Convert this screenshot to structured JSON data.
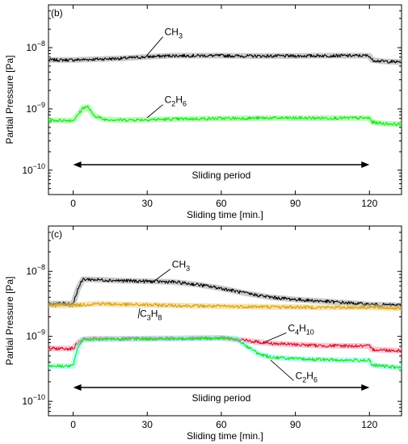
{
  "chart_data": [
    {
      "type": "line",
      "panel_label": "(b)",
      "xlabel": "Sliding time [min.]",
      "ylabel": "Partial Pressure [Pa]",
      "xlim": [
        -10,
        133
      ],
      "ylim": [
        4e-11,
        5e-08
      ],
      "yscale": "log",
      "xticks": [
        {
          "value": 0,
          "label": "0"
        },
        {
          "value": 30,
          "label": "30"
        },
        {
          "value": 60,
          "label": "60"
        },
        {
          "value": 90,
          "label": "90"
        },
        {
          "value": 120,
          "label": "120"
        }
      ],
      "yticks": [
        {
          "value": 1e-08,
          "base": "10",
          "exp": "−8"
        },
        {
          "value": 1e-09,
          "base": "10",
          "exp": "−9"
        },
        {
          "value": 1e-10,
          "base": "10",
          "exp": "−10"
        }
      ],
      "annotation": {
        "text": "Sliding period",
        "x_start": 0,
        "x_end": 120
      },
      "series": [
        {
          "name": "CH3",
          "label_base": "CH",
          "label_sub": "3",
          "color": "#000000",
          "band_color": "#9aa0a0",
          "x": [
            -10,
            0,
            10,
            20,
            30,
            40,
            50,
            60,
            70,
            80,
            90,
            100,
            110,
            118,
            120,
            121,
            125,
            133
          ],
          "y": [
            6.3e-09,
            6.3e-09,
            6.5e-09,
            6.7e-09,
            7.1e-09,
            7.4e-09,
            7.4e-09,
            7.4e-09,
            7.3e-09,
            7.3e-09,
            7.3e-09,
            7.4e-09,
            7.4e-09,
            7.4e-09,
            7.4e-09,
            6.3e-09,
            6e-09,
            5.8e-09
          ]
        },
        {
          "name": "C2H6",
          "label_base": "C",
          "label_sub": "2",
          "label_base2": "H",
          "label_sub2": "6",
          "color": "#22dd22",
          "band_color": "#7cff7c",
          "x": [
            -10,
            0,
            2,
            4,
            6,
            8,
            12,
            20,
            40,
            60,
            80,
            100,
            118,
            120,
            121,
            125,
            133
          ],
          "y": [
            6.5e-10,
            6.5e-10,
            8e-10,
            1.05e-09,
            1.08e-09,
            8e-10,
            6.8e-10,
            6.6e-10,
            6.8e-10,
            7e-10,
            7.1e-10,
            7.1e-10,
            7.1e-10,
            7.1e-10,
            6.1e-10,
            5.8e-10,
            5.6e-10
          ]
        }
      ],
      "series_labels": [
        {
          "series": "CH3",
          "text_x": 37,
          "text_y": 1.6e-08,
          "leader_x": 30,
          "leader_y": 7.6e-09
        },
        {
          "series": "C2H6",
          "text_x": 37,
          "text_y": 1.25e-09,
          "leader_x": 30,
          "leader_y": 7.2e-10
        }
      ]
    },
    {
      "type": "line",
      "panel_label": "(c)",
      "xlabel": "Sliding time [min.]",
      "ylabel": "Partial Pressure [Pa]",
      "xlim": [
        -10,
        133
      ],
      "ylim": [
        6e-11,
        5e-08
      ],
      "yscale": "log",
      "xticks": [
        {
          "value": 0,
          "label": "0"
        },
        {
          "value": 30,
          "label": "30"
        },
        {
          "value": 60,
          "label": "60"
        },
        {
          "value": 90,
          "label": "90"
        },
        {
          "value": 120,
          "label": "120"
        }
      ],
      "yticks": [
        {
          "value": 1e-08,
          "base": "10",
          "exp": "−8"
        },
        {
          "value": 1e-09,
          "base": "10",
          "exp": "−9"
        },
        {
          "value": 1e-10,
          "base": "10",
          "exp": "−10"
        }
      ],
      "annotation": {
        "text": "Sliding period",
        "x_start": 0,
        "x_end": 120
      },
      "series": [
        {
          "name": "CH3",
          "label_base": "CH",
          "label_sub": "3",
          "color": "#000000",
          "band_color": "#9aa0a0",
          "x": [
            -10,
            0,
            2,
            4,
            8,
            20,
            40,
            50,
            60,
            70,
            80,
            90,
            100,
            110,
            120,
            133
          ],
          "y": [
            3.2e-09,
            3.2e-09,
            5.5e-09,
            7.6e-09,
            7.5e-09,
            7.2e-09,
            6.9e-09,
            6.3e-09,
            5.5e-09,
            4.6e-09,
            4e-09,
            3.7e-09,
            3.5e-09,
            3.3e-09,
            3.1e-09,
            3e-09
          ]
        },
        {
          "name": "C3H8",
          "label_base": "C",
          "label_sub": "3",
          "label_base2": "H",
          "label_sub2": "8",
          "color": "#d4a017",
          "band_color": "#f0d070",
          "x": [
            -10,
            0,
            10,
            20,
            40,
            60,
            80,
            100,
            120,
            133
          ],
          "y": [
            3e-09,
            3e-09,
            3.2e-09,
            3.1e-09,
            3e-09,
            2.9e-09,
            2.85e-09,
            2.8e-09,
            2.8e-09,
            2.7e-09
          ]
        },
        {
          "name": "C4H10",
          "label_base": "C",
          "label_sub": "4",
          "label_base2": "H",
          "label_sub2": "10",
          "color": "#cc1a1a",
          "band_color": "#ff8fbf",
          "x": [
            -10,
            0,
            2,
            4,
            8,
            20,
            40,
            60,
            70,
            80,
            100,
            118,
            120,
            121,
            133
          ],
          "y": [
            6.5e-10,
            6.5e-10,
            8e-10,
            9e-10,
            9.2e-10,
            9.2e-10,
            9.3e-10,
            9.5e-10,
            8.6e-10,
            7.8e-10,
            7.2e-10,
            7.1e-10,
            7.1e-10,
            6.3e-10,
            6e-10
          ]
        },
        {
          "name": "C2H6",
          "label_base": "C",
          "label_sub": "2",
          "label_base2": "H",
          "label_sub2": "6",
          "color": "#22dd22",
          "band_color": "#7cffe8",
          "x": [
            -10,
            0,
            2,
            4,
            8,
            20,
            40,
            60,
            66,
            70,
            75,
            80,
            90,
            100,
            110,
            118,
            120,
            121,
            133
          ],
          "y": [
            3.5e-10,
            3.5e-10,
            7e-10,
            9e-10,
            9e-10,
            9.1e-10,
            9.2e-10,
            9.4e-10,
            9.3e-10,
            7.2e-10,
            5.4e-10,
            4.8e-10,
            4.5e-10,
            4.4e-10,
            4.3e-10,
            4.3e-10,
            4.3e-10,
            3.6e-10,
            3.3e-10
          ]
        }
      ],
      "series_labels": [
        {
          "series": "CH3",
          "text_x": 40,
          "text_y": 1.15e-08,
          "leader_x": 33,
          "leader_y": 7.2e-09
        },
        {
          "series": "C3H8",
          "text_x": 27,
          "text_y": 2e-09,
          "leader_x": 27,
          "leader_y": 2.7e-09
        },
        {
          "series": "C4H10",
          "text_x": 87,
          "text_y": 1.2e-09,
          "leader_x": 77,
          "leader_y": 8e-10
        },
        {
          "series": "C2H6",
          "text_x": 90,
          "text_y": 2.2e-10,
          "leader_x": 80,
          "leader_y": 4.3e-10
        }
      ]
    }
  ]
}
